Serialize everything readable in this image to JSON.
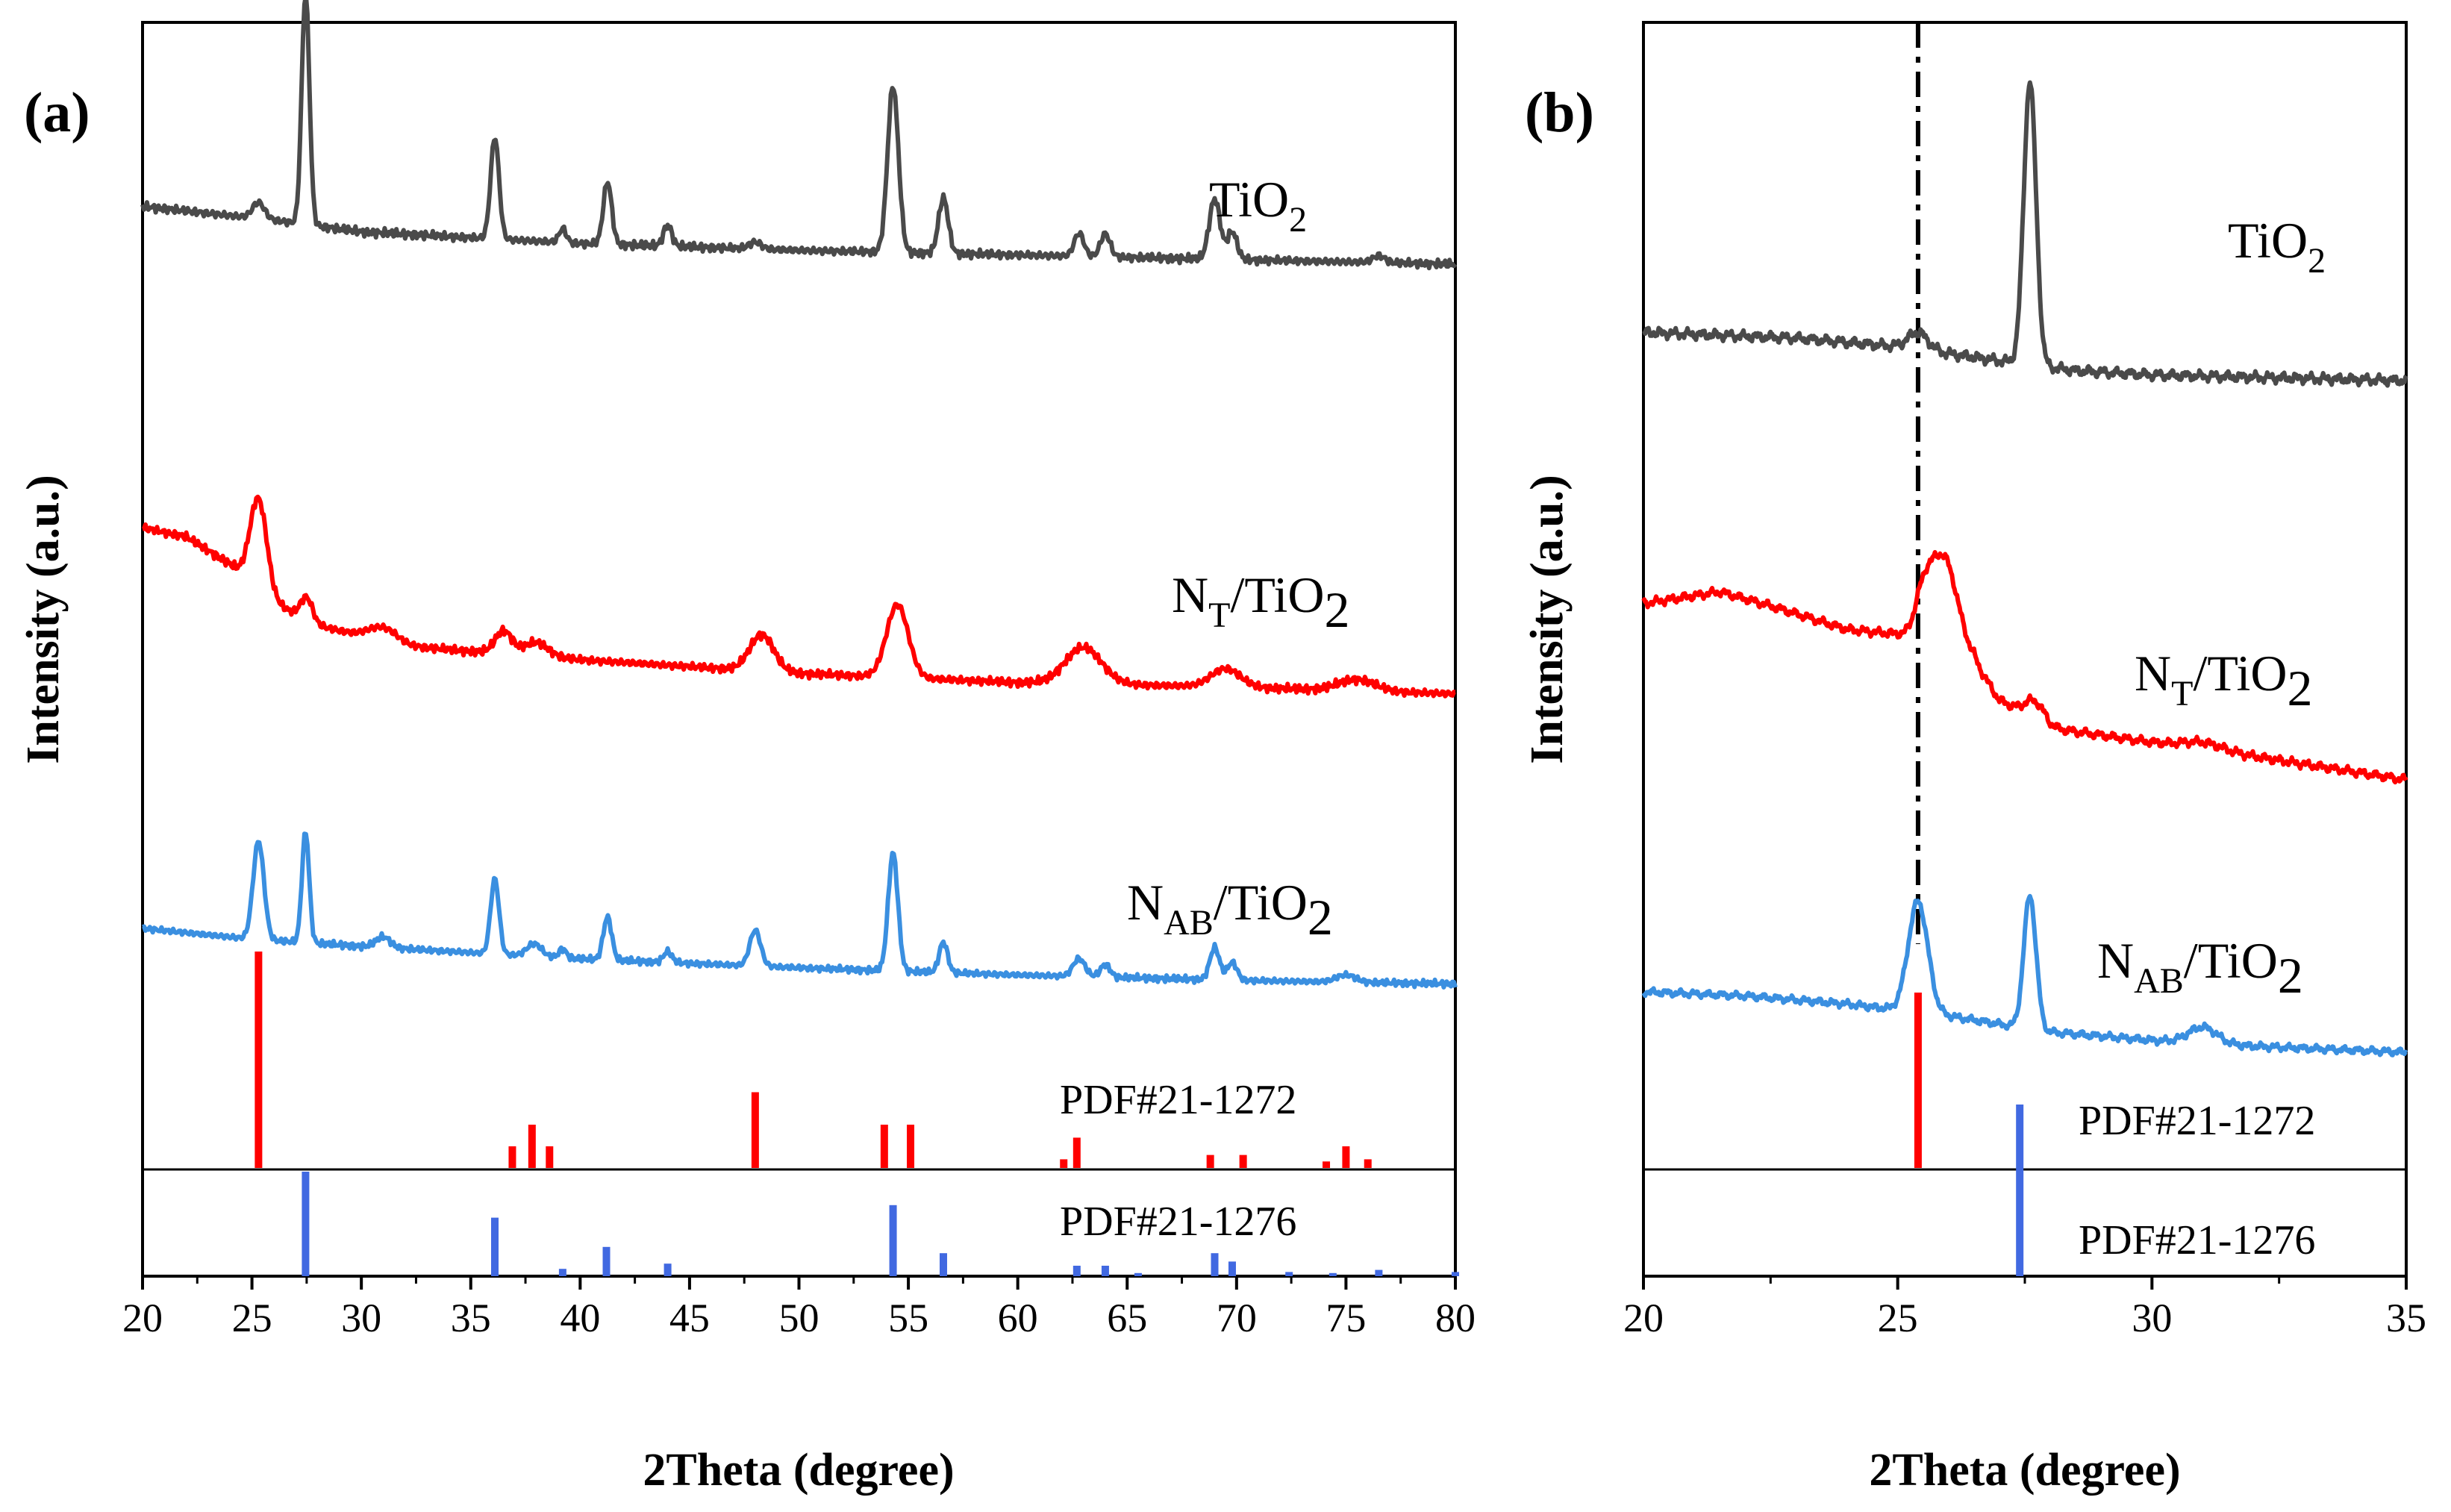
{
  "chart_data": [
    {
      "panel": "(a)",
      "type": "line",
      "xlabel": "2Theta (degree)",
      "ylabel": "Intensity (a.u.)",
      "xlim": [
        20,
        80
      ],
      "xticks": [
        20,
        25,
        30,
        35,
        40,
        45,
        50,
        55,
        60,
        65,
        70,
        75,
        80
      ],
      "series": [
        {
          "name": "TiO2",
          "label_main": "TiO",
          "label_sub": "2",
          "label_suffix": "",
          "color": "#4a4a4a",
          "baseline": [
            [
              20,
              0.35
            ],
            [
              26,
              0.29
            ],
            [
              30,
              0.24
            ],
            [
              40,
              0.19
            ],
            [
              50,
              0.16
            ],
            [
              60,
              0.14
            ],
            [
              70,
              0.12
            ],
            [
              80,
              0.1
            ]
          ],
          "peaks": [
            [
              25.3,
              0.07,
              0.5
            ],
            [
              27.45,
              1.0,
              0.32
            ],
            [
              36.1,
              0.44,
              0.35
            ],
            [
              39.2,
              0.06,
              0.3
            ],
            [
              41.25,
              0.27,
              0.35
            ],
            [
              44.0,
              0.09,
              0.35
            ],
            [
              48.0,
              0.03,
              0.5
            ],
            [
              54.3,
              0.72,
              0.45
            ],
            [
              56.6,
              0.24,
              0.4
            ],
            [
              62.8,
              0.1,
              0.4
            ],
            [
              64.0,
              0.1,
              0.4
            ],
            [
              69.0,
              0.26,
              0.45
            ],
            [
              69.8,
              0.12,
              0.4
            ],
            [
              76.5,
              0.03,
              0.5
            ]
          ]
        },
        {
          "name": "NT/TiO2",
          "label_main": "N",
          "label_sub": "T",
          "label_suffix": "/TiO",
          "label_sub2": "2",
          "color": "#ff0000",
          "baseline": [
            [
              20,
              0.78
            ],
            [
              22,
              0.74
            ],
            [
              24,
              0.62
            ],
            [
              26,
              0.45
            ],
            [
              28,
              0.35
            ],
            [
              32,
              0.26
            ],
            [
              40,
              0.2
            ],
            [
              50,
              0.14
            ],
            [
              60,
              0.1
            ],
            [
              70,
              0.08
            ],
            [
              80,
              0.05
            ]
          ],
          "peaks": [
            [
              25.3,
              0.4,
              0.7
            ],
            [
              27.5,
              0.1,
              0.5
            ],
            [
              31.0,
              0.06,
              1.2
            ],
            [
              36.5,
              0.1,
              0.7
            ],
            [
              38.0,
              0.06,
              1.0
            ],
            [
              48.3,
              0.16,
              1.0
            ],
            [
              54.5,
              0.32,
              0.9
            ],
            [
              63.0,
              0.16,
              1.5
            ],
            [
              69.5,
              0.08,
              1.2
            ],
            [
              75.5,
              0.05,
              1.5
            ]
          ]
        },
        {
          "name": "NAB/TiO2",
          "label_main": "N",
          "label_sub": "AB",
          "label_suffix": "/TiO",
          "label_sub2": "2",
          "color": "#3a8fe0",
          "baseline": [
            [
              20,
              0.4
            ],
            [
              25,
              0.34
            ],
            [
              30,
              0.3
            ],
            [
              40,
              0.23
            ],
            [
              50,
              0.18
            ],
            [
              60,
              0.14
            ],
            [
              70,
              0.11
            ],
            [
              80,
              0.09
            ]
          ],
          "peaks": [
            [
              25.3,
              0.55,
              0.45
            ],
            [
              27.45,
              0.62,
              0.3
            ],
            [
              31.0,
              0.06,
              0.6
            ],
            [
              36.1,
              0.42,
              0.35
            ],
            [
              37.9,
              0.07,
              0.6
            ],
            [
              39.2,
              0.05,
              0.3
            ],
            [
              41.25,
              0.24,
              0.35
            ],
            [
              44.0,
              0.06,
              0.35
            ],
            [
              48.0,
              0.2,
              0.45
            ],
            [
              54.3,
              0.66,
              0.4
            ],
            [
              56.6,
              0.17,
              0.35
            ],
            [
              62.8,
              0.1,
              0.5
            ],
            [
              64.0,
              0.07,
              0.4
            ],
            [
              69.0,
              0.18,
              0.4
            ],
            [
              69.8,
              0.1,
              0.4
            ],
            [
              75.0,
              0.04,
              0.8
            ]
          ]
        }
      ],
      "reference_patterns": [
        {
          "name": "PDF#21-1272",
          "color": "#ff0000",
          "lines": [
            [
              25.3,
              1.0
            ],
            [
              36.9,
              0.1
            ],
            [
              37.8,
              0.2
            ],
            [
              38.6,
              0.1
            ],
            [
              48.0,
              0.35
            ],
            [
              53.9,
              0.2
            ],
            [
              55.1,
              0.2
            ],
            [
              62.1,
              0.04
            ],
            [
              62.7,
              0.14
            ],
            [
              68.8,
              0.06
            ],
            [
              70.3,
              0.06
            ],
            [
              74.1,
              0.03
            ],
            [
              75.0,
              0.1
            ],
            [
              76.0,
              0.04
            ]
          ]
        },
        {
          "name": "PDF#21-1276",
          "color": "#4169e1",
          "lines": [
            [
              27.45,
              1.0
            ],
            [
              36.1,
              0.56
            ],
            [
              39.2,
              0.07
            ],
            [
              41.2,
              0.28
            ],
            [
              44.0,
              0.12
            ],
            [
              54.3,
              0.68
            ],
            [
              56.6,
              0.22
            ],
            [
              62.7,
              0.1
            ],
            [
              64.0,
              0.1
            ],
            [
              65.5,
              0.03
            ],
            [
              69.0,
              0.22
            ],
            [
              69.8,
              0.14
            ],
            [
              72.4,
              0.04
            ],
            [
              74.4,
              0.03
            ],
            [
              76.5,
              0.06
            ],
            [
              80.0,
              0.04
            ]
          ]
        }
      ]
    },
    {
      "panel": "(b)",
      "type": "line",
      "xlabel": "2Theta (degree)",
      "ylabel": "Intensity (a.u.)",
      "xlim": [
        20,
        35
      ],
      "xticks": [
        20,
        25,
        30,
        35
      ],
      "marker_line_x": 25.4,
      "series": [
        {
          "name": "TiO2",
          "label_main": "TiO",
          "label_sub": "2",
          "label_suffix": "",
          "color": "#4a4a4a",
          "baseline": [
            [
              20,
              0.17
            ],
            [
              23,
              0.15
            ],
            [
              25,
              0.12
            ],
            [
              27,
              0.07
            ],
            [
              28.5,
              0.035
            ],
            [
              30,
              0.02
            ],
            [
              35,
              0.0
            ]
          ],
          "peaks": [
            [
              25.4,
              0.06,
              0.35
            ],
            [
              27.6,
              1.0,
              0.22
            ]
          ]
        },
        {
          "name": "NT/TiO2",
          "label_main": "N",
          "label_sub": "T",
          "label_suffix": "/TiO",
          "label_sub2": "2",
          "color": "#ff0000",
          "baseline": [
            [
              20,
              0.75
            ],
            [
              21.5,
              0.8
            ],
            [
              22.5,
              0.74
            ],
            [
              24,
              0.64
            ],
            [
              25,
              0.62
            ],
            [
              26.5,
              0.5
            ],
            [
              27,
              0.34
            ],
            [
              28,
              0.22
            ],
            [
              30,
              0.16
            ],
            [
              32,
              0.1
            ],
            [
              35,
              0.0
            ]
          ],
          "peaks": [
            [
              25.5,
              0.15,
              0.3
            ],
            [
              25.9,
              0.4,
              0.5
            ],
            [
              27.7,
              0.08,
              0.35
            ],
            [
              31.0,
              0.03,
              0.7
            ]
          ]
        },
        {
          "name": "NAB/TiO2",
          "label_main": "N",
          "label_sub": "AB",
          "label_suffix": "/TiO",
          "label_sub2": "2",
          "color": "#3a8fe0",
          "baseline": [
            [
              20,
              0.3
            ],
            [
              22,
              0.28
            ],
            [
              24,
              0.24
            ],
            [
              26,
              0.18
            ],
            [
              28,
              0.1
            ],
            [
              30,
              0.06
            ],
            [
              32,
              0.03
            ],
            [
              35,
              0.0
            ]
          ],
          "peaks": [
            [
              25.4,
              0.55,
              0.35
            ],
            [
              27.6,
              0.66,
              0.22
            ],
            [
              31.0,
              0.08,
              0.5
            ]
          ]
        }
      ],
      "reference_patterns": [
        {
          "name": "PDF#21-1272",
          "color": "#ff0000",
          "lines": [
            [
              25.4,
              1.0
            ]
          ]
        },
        {
          "name": "PDF#21-1276",
          "color": "#4169e1",
          "lines": [
            [
              27.4,
              1.0
            ]
          ]
        }
      ]
    }
  ]
}
